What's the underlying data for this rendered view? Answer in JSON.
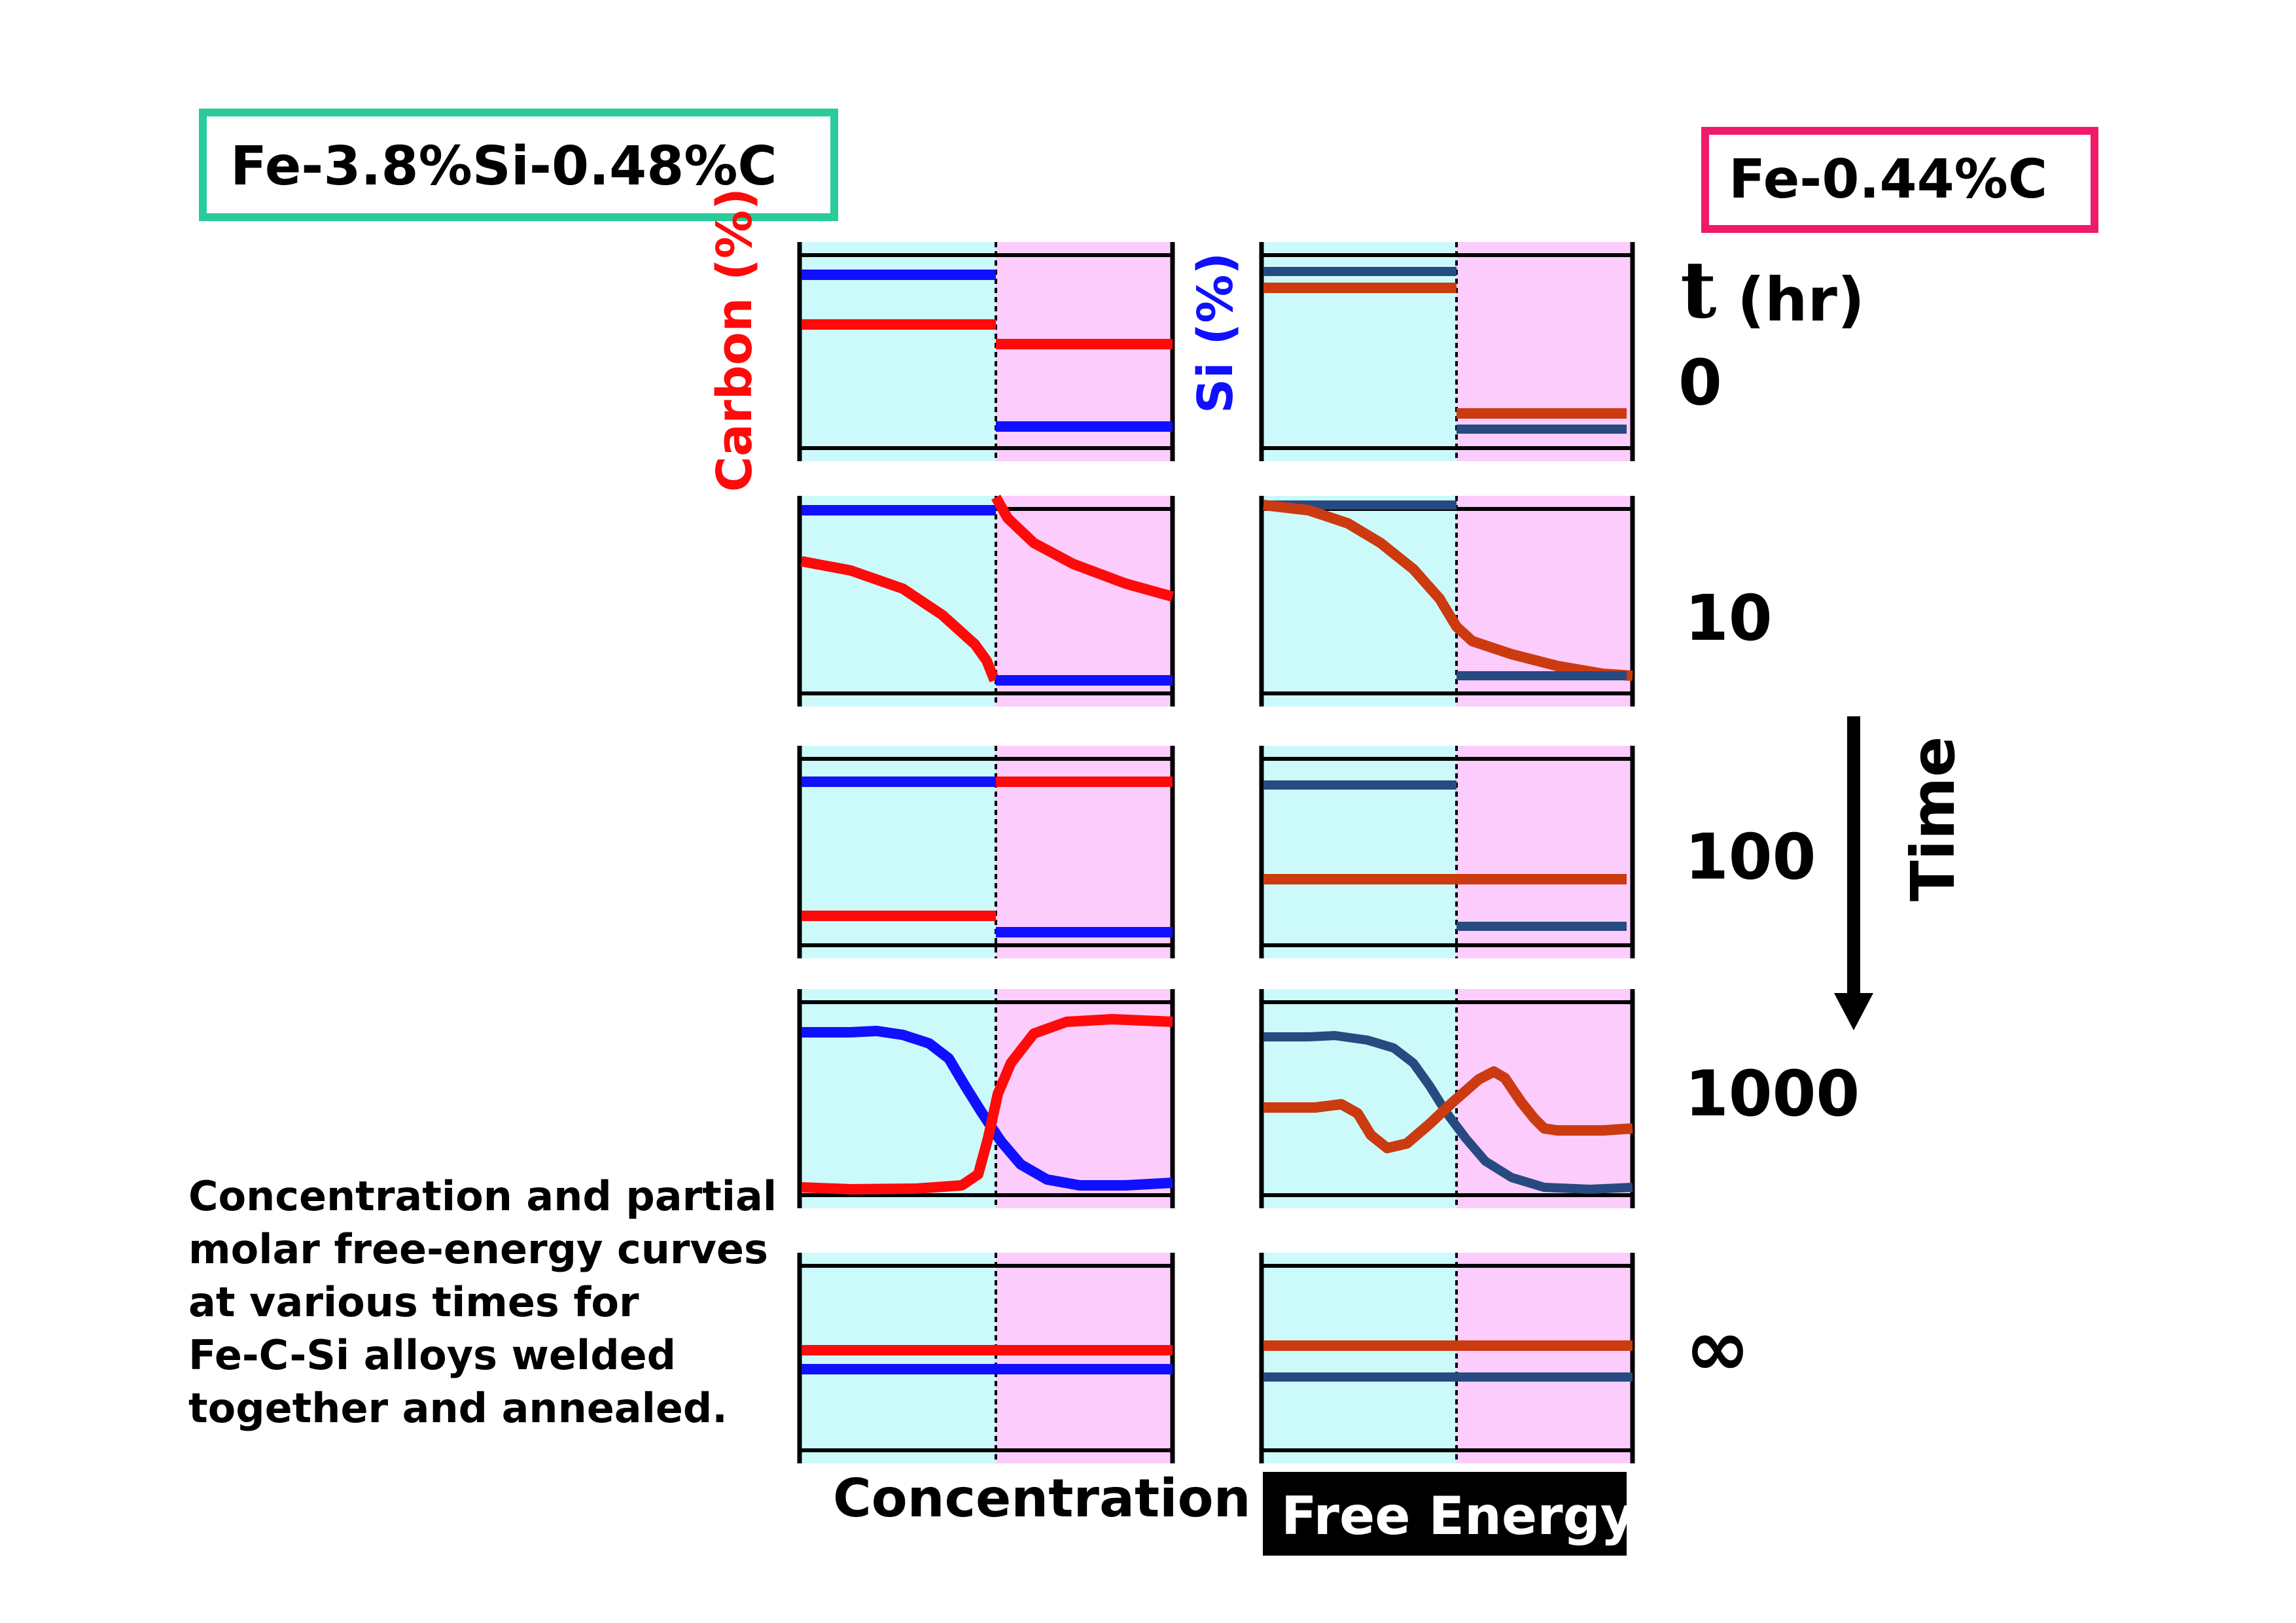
{
  "labels": {
    "left_alloy": "Fe-3.8%Si-0.48%C",
    "right_alloy": "Fe-0.44%C",
    "carbon_axis": "Carbon (%)",
    "si_axis": "Si (%)",
    "time_t": "t",
    "time_unit": "(hr)",
    "time_arrow": "Time",
    "bottom_concentration": "Concentration",
    "bottom_free_energy": "Free Energy"
  },
  "caption_lines": [
    "Concentration and partial",
    "molar free-energy curves",
    "at various times for",
    "Fe-C-Si alloys welded",
    "together and annealed."
  ],
  "times": [
    "0",
    "10",
    "100",
    "1000",
    "∞"
  ],
  "colors": {
    "left_bg": "#ccfafa",
    "right_bg": "#fcccfc",
    "carbon": "#ff0a0a",
    "si": "#1010ff",
    "fe_carbon": "#cc3a10",
    "fe_si": "#274a80",
    "left_box": "#2acb9a",
    "right_box": "#f01a6a",
    "dark": "#000000"
  }
}
